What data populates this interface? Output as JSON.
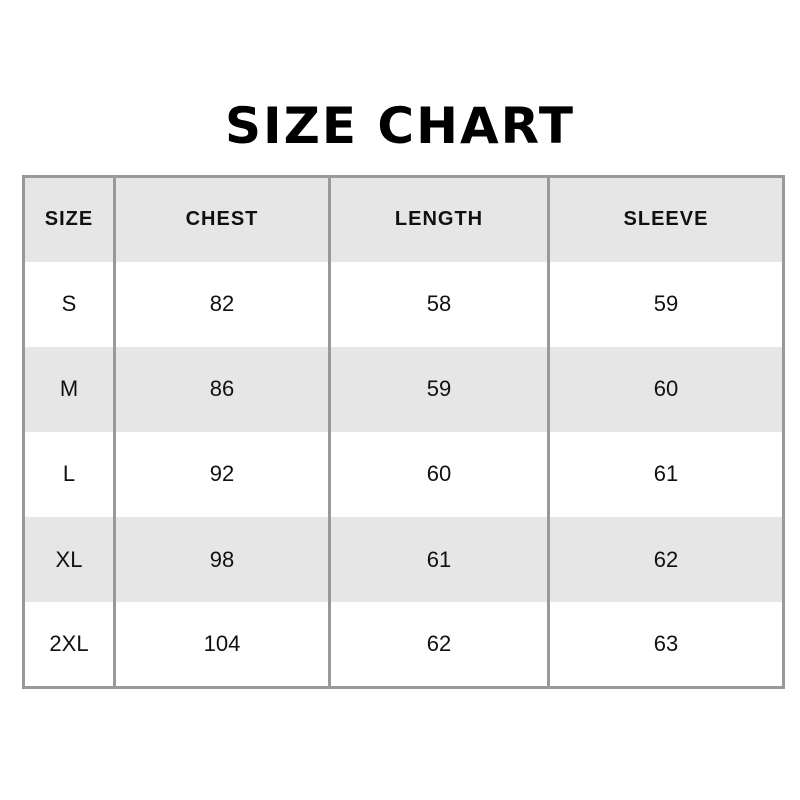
{
  "title": "SIZE CHART",
  "table": {
    "headers": [
      "SIZE",
      "CHEST",
      "LENGTH",
      "SLEEVE"
    ],
    "rows": [
      [
        "S",
        "82",
        "58",
        "59"
      ],
      [
        "M",
        "86",
        "59",
        "60"
      ],
      [
        "L",
        "92",
        "60",
        "61"
      ],
      [
        "XL",
        "98",
        "61",
        "62"
      ],
      [
        "2XL",
        "104",
        "62",
        "63"
      ]
    ]
  },
  "colors": {
    "header_bg": "#e6e6e6",
    "border": "#999999",
    "alt_row_bg": "#e6e6e6"
  }
}
